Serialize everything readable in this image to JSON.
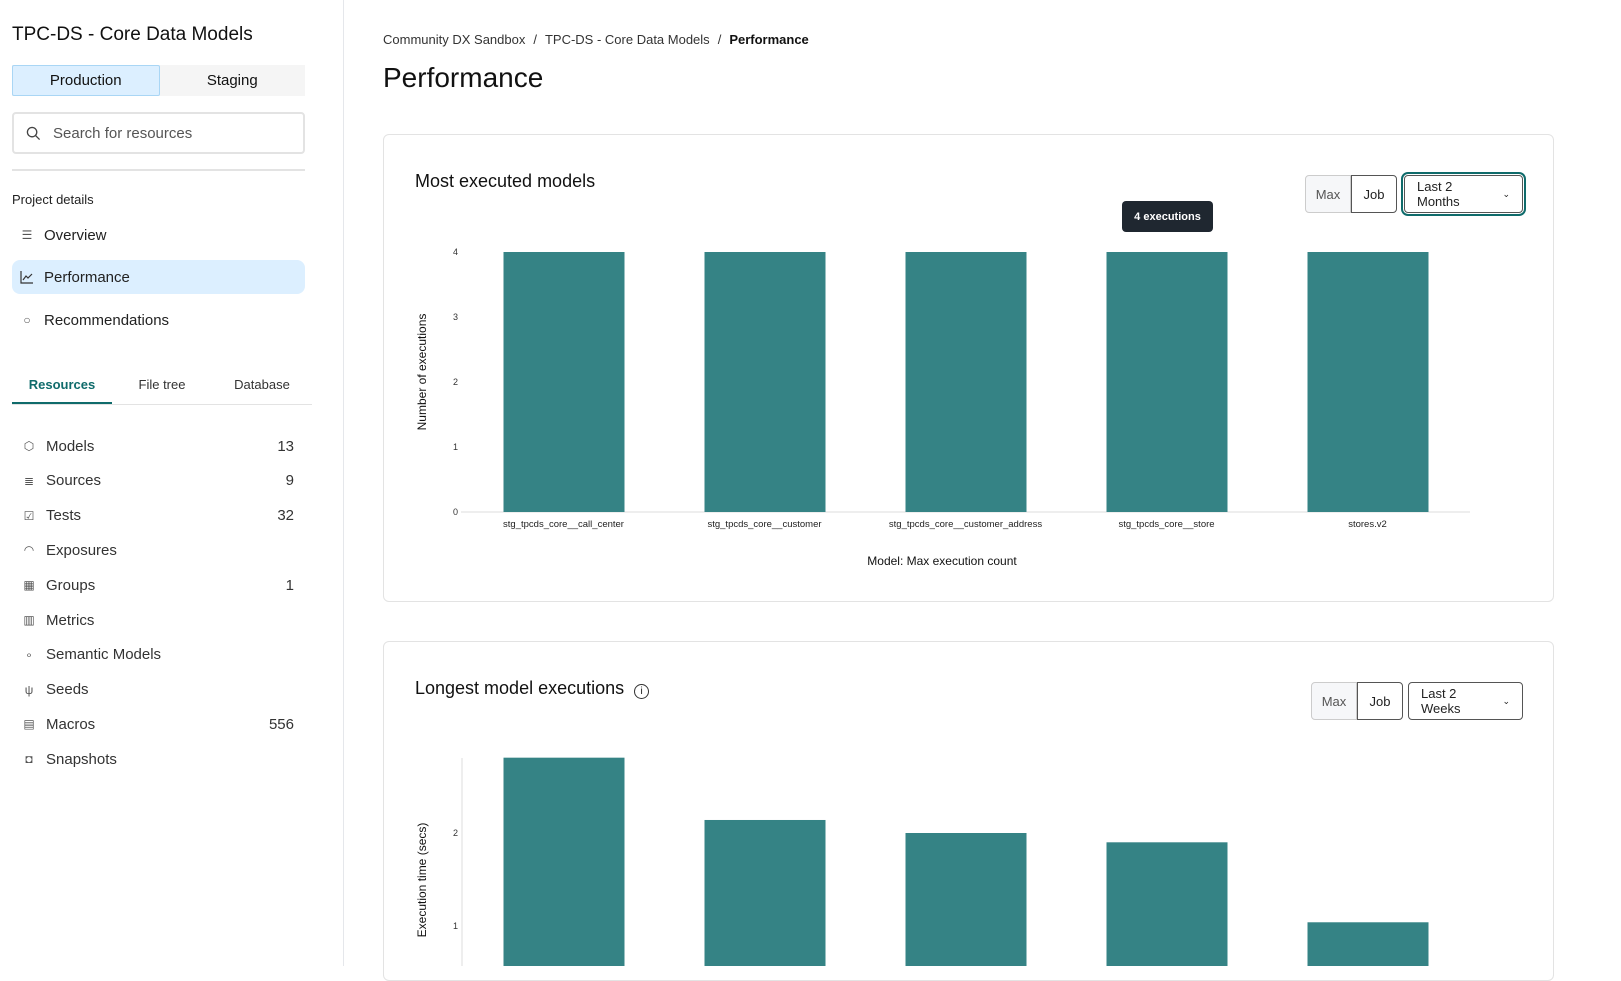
{
  "sidebar": {
    "project_title": "TPC-DS - Core Data Models",
    "env_tabs": [
      {
        "label": "Production",
        "active": true
      },
      {
        "label": "Staging",
        "active": false
      }
    ],
    "search_placeholder": "Search for resources",
    "section_label": "Project details",
    "nav": [
      {
        "label": "Overview",
        "icon": "list-icon"
      },
      {
        "label": "Performance",
        "icon": "line-chart-icon",
        "active": true
      },
      {
        "label": "Recommendations",
        "icon": "lightbulb-icon"
      }
    ],
    "resource_tabs": [
      {
        "label": "Resources",
        "active": true
      },
      {
        "label": "File tree"
      },
      {
        "label": "Database"
      }
    ],
    "resources": [
      {
        "label": "Models",
        "count": "13",
        "icon": "cube-icon"
      },
      {
        "label": "Sources",
        "count": "9",
        "icon": "database-icon"
      },
      {
        "label": "Tests",
        "count": "32",
        "icon": "clipboard-check-icon"
      },
      {
        "label": "Exposures",
        "count": "",
        "icon": "gauge-icon"
      },
      {
        "label": "Groups",
        "count": "1",
        "icon": "grid-icon"
      },
      {
        "label": "Metrics",
        "count": "",
        "icon": "bar-chart-icon"
      },
      {
        "label": "Semantic Models",
        "count": "",
        "icon": "nodes-icon"
      },
      {
        "label": "Seeds",
        "count": "",
        "icon": "sprout-icon"
      },
      {
        "label": "Macros",
        "count": "556",
        "icon": "document-icon"
      },
      {
        "label": "Snapshots",
        "count": "",
        "icon": "camera-icon"
      }
    ]
  },
  "breadcrumb": [
    "Community DX Sandbox",
    "TPC-DS - Core Data Models",
    "Performance"
  ],
  "page_title": "Performance",
  "colors": {
    "bar": "#358385",
    "accent": "#0f6b6b",
    "active_bg": "#dcefff"
  },
  "cards": [
    {
      "title": "Most executed models",
      "seg": [
        "Max",
        "Job"
      ],
      "range": "Last 2 Months",
      "tooltip": "4 executions"
    },
    {
      "title": "Longest model executions",
      "seg": [
        "Max",
        "Job"
      ],
      "range": "Last 2 Weeks"
    }
  ],
  "chart_data": [
    {
      "type": "bar",
      "xlabel": "Model: Max execution count",
      "ylabel": "Number of executions",
      "categories": [
        "stg_tpcds_core__call_center",
        "stg_tpcds_core__customer",
        "stg_tpcds_core__customer_address",
        "stg_tpcds_core__store",
        "stores.v2"
      ],
      "values": [
        4,
        4,
        4,
        4,
        4
      ],
      "yticks": [
        "0",
        "1",
        "2",
        "3",
        "4"
      ],
      "ylim": [
        0,
        4
      ],
      "grid": false
    },
    {
      "type": "bar",
      "ylabel": "Execution time (secs)",
      "values": [
        2.81,
        2.14,
        2.0,
        1.9,
        1.04
      ],
      "yticks": [
        "1",
        "2"
      ],
      "grid": false
    }
  ]
}
